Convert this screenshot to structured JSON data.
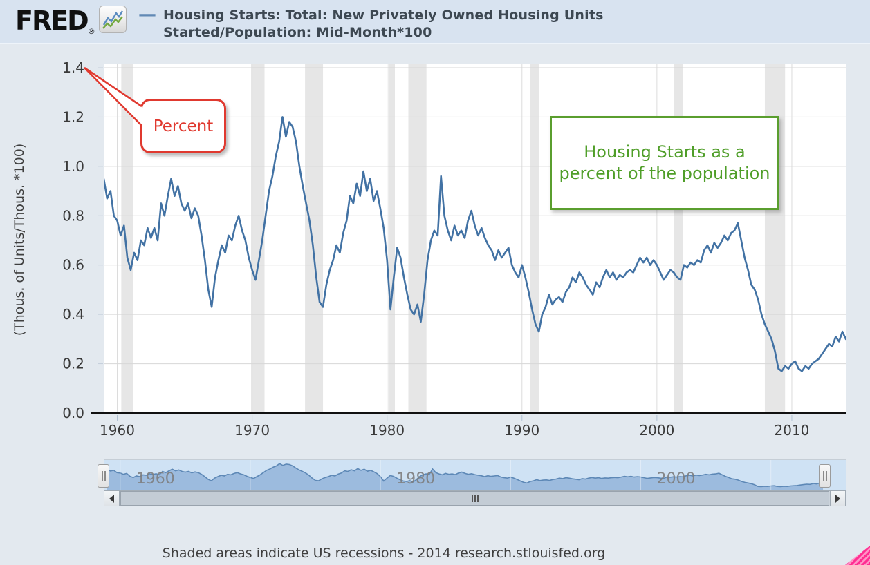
{
  "header": {
    "logo_text": "FRED",
    "logo_reg": "®",
    "legend_dash": "—",
    "series_title_line1": "Housing Starts: Total: New Privately Owned Housing Units",
    "series_title_line2": "Started/Population: Mid-Month*100"
  },
  "annotations": {
    "percent_callout": "Percent",
    "green_note_line1": "Housing Starts as a",
    "green_note_line2": "percent of the population",
    "green_color": "#5a9e2e",
    "red_color": "#e0392f"
  },
  "footer": {
    "note": "Shaded areas indicate US recessions - 2014 research.stlouisfed.org"
  },
  "chart_data": {
    "type": "line",
    "title": "Housing Starts: Total: New Privately Owned Housing Units Started/Population: Mid-Month*100",
    "ylabel": "(Thous. of Units/Thous. *100)",
    "line_color": "#4272a4",
    "recession_band_color": "#e6e6e6",
    "xlim": [
      1959.0,
      2014.0
    ],
    "ylim": [
      0,
      1.4
    ],
    "x_ticks": [
      1960,
      1970,
      1980,
      1990,
      2000,
      2010
    ],
    "y_ticks": [
      "0.0",
      "0.2",
      "0.4",
      "0.6",
      "0.8",
      "1.0",
      "1.2",
      "1.4"
    ],
    "x_start": 1959.0,
    "x_step": 0.25,
    "recessions": [
      [
        1960.3,
        1961.17
      ],
      [
        1969.92,
        1970.92
      ],
      [
        1973.92,
        1975.25
      ],
      [
        1980.08,
        1980.58
      ],
      [
        1981.58,
        1982.92
      ],
      [
        1990.58,
        1991.25
      ],
      [
        2001.25,
        2001.92
      ],
      [
        2008.0,
        2009.5
      ]
    ],
    "values": [
      0.95,
      0.87,
      0.9,
      0.8,
      0.78,
      0.72,
      0.76,
      0.63,
      0.58,
      0.65,
      0.62,
      0.7,
      0.68,
      0.75,
      0.71,
      0.75,
      0.7,
      0.85,
      0.8,
      0.88,
      0.95,
      0.88,
      0.92,
      0.85,
      0.82,
      0.85,
      0.79,
      0.83,
      0.8,
      0.72,
      0.62,
      0.5,
      0.43,
      0.55,
      0.62,
      0.68,
      0.65,
      0.72,
      0.7,
      0.76,
      0.8,
      0.74,
      0.7,
      0.63,
      0.58,
      0.54,
      0.62,
      0.7,
      0.8,
      0.9,
      0.96,
      1.04,
      1.1,
      1.2,
      1.12,
      1.18,
      1.16,
      1.1,
      1.0,
      0.92,
      0.85,
      0.78,
      0.68,
      0.55,
      0.45,
      0.43,
      0.52,
      0.58,
      0.62,
      0.68,
      0.65,
      0.73,
      0.78,
      0.88,
      0.85,
      0.93,
      0.88,
      0.98,
      0.9,
      0.95,
      0.86,
      0.9,
      0.83,
      0.75,
      0.62,
      0.42,
      0.55,
      0.67,
      0.63,
      0.55,
      0.48,
      0.42,
      0.4,
      0.44,
      0.37,
      0.48,
      0.62,
      0.7,
      0.74,
      0.72,
      0.96,
      0.8,
      0.74,
      0.7,
      0.76,
      0.72,
      0.74,
      0.71,
      0.78,
      0.82,
      0.76,
      0.72,
      0.75,
      0.71,
      0.68,
      0.66,
      0.62,
      0.66,
      0.63,
      0.65,
      0.67,
      0.6,
      0.57,
      0.55,
      0.6,
      0.55,
      0.49,
      0.42,
      0.36,
      0.33,
      0.4,
      0.43,
      0.48,
      0.44,
      0.46,
      0.47,
      0.45,
      0.49,
      0.51,
      0.55,
      0.53,
      0.57,
      0.55,
      0.52,
      0.5,
      0.48,
      0.53,
      0.51,
      0.55,
      0.58,
      0.55,
      0.57,
      0.54,
      0.56,
      0.55,
      0.57,
      0.58,
      0.57,
      0.6,
      0.63,
      0.61,
      0.63,
      0.6,
      0.62,
      0.6,
      0.57,
      0.54,
      0.56,
      0.58,
      0.57,
      0.55,
      0.54,
      0.6,
      0.59,
      0.61,
      0.6,
      0.62,
      0.61,
      0.66,
      0.68,
      0.65,
      0.69,
      0.67,
      0.69,
      0.72,
      0.7,
      0.73,
      0.74,
      0.77,
      0.7,
      0.63,
      0.58,
      0.52,
      0.5,
      0.46,
      0.4,
      0.36,
      0.33,
      0.3,
      0.25,
      0.18,
      0.17,
      0.19,
      0.18,
      0.2,
      0.21,
      0.18,
      0.17,
      0.19,
      0.18,
      0.2,
      0.21,
      0.22,
      0.24,
      0.26,
      0.28,
      0.27,
      0.31,
      0.29,
      0.33,
      0.3,
      0.34
    ],
    "navigator": {
      "tick_labels": [
        "1960",
        "1980",
        "2000"
      ],
      "tick_years": [
        1960,
        1980,
        2000
      ]
    }
  }
}
